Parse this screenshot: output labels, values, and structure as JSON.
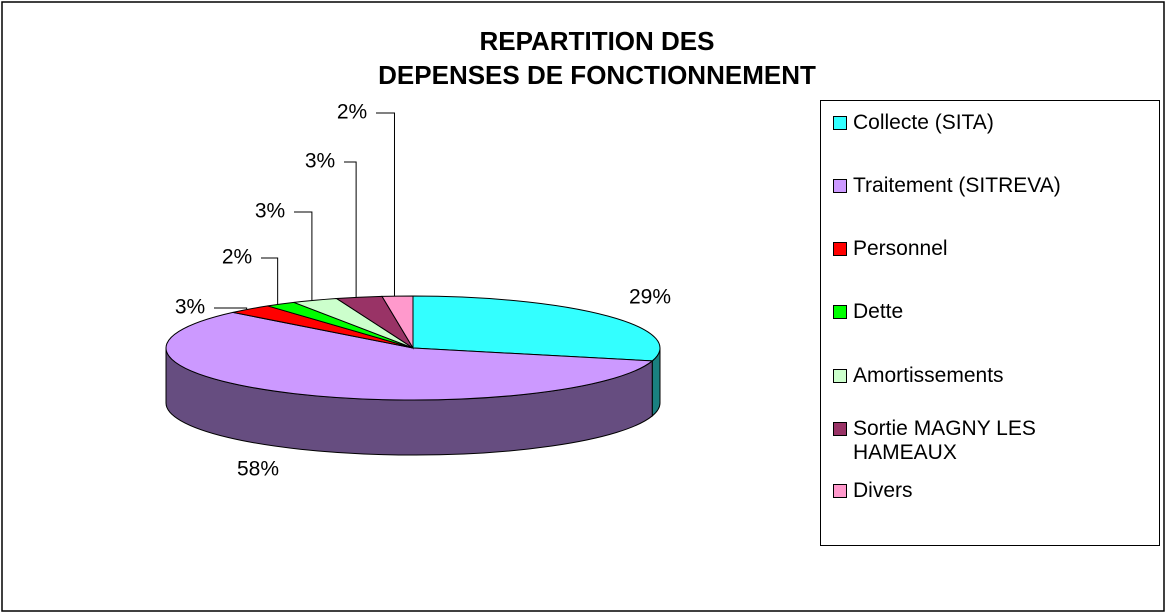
{
  "chart_data": {
    "type": "pie3d",
    "title": [
      "REPARTITION DES",
      "DEPENSES DE FONCTIONNEMENT"
    ],
    "categories": [
      "Collecte (SITA)",
      "Traitement (SITREVA)",
      "Personnel",
      "Dette",
      "Amortissements",
      "Sortie MAGNY LES HAMEAUX",
      "Divers"
    ],
    "values": [
      29,
      58,
      3,
      2,
      3,
      3,
      2
    ],
    "value_labels": [
      "29%",
      "58%",
      "3%",
      "2%",
      "3%",
      "3%",
      "2%"
    ],
    "colors": [
      "#33ffff",
      "#cc99ff",
      "#ff0000",
      "#00ff00",
      "#ccffcc",
      "#993366",
      "#ff99cc"
    ],
    "legend": "right"
  }
}
